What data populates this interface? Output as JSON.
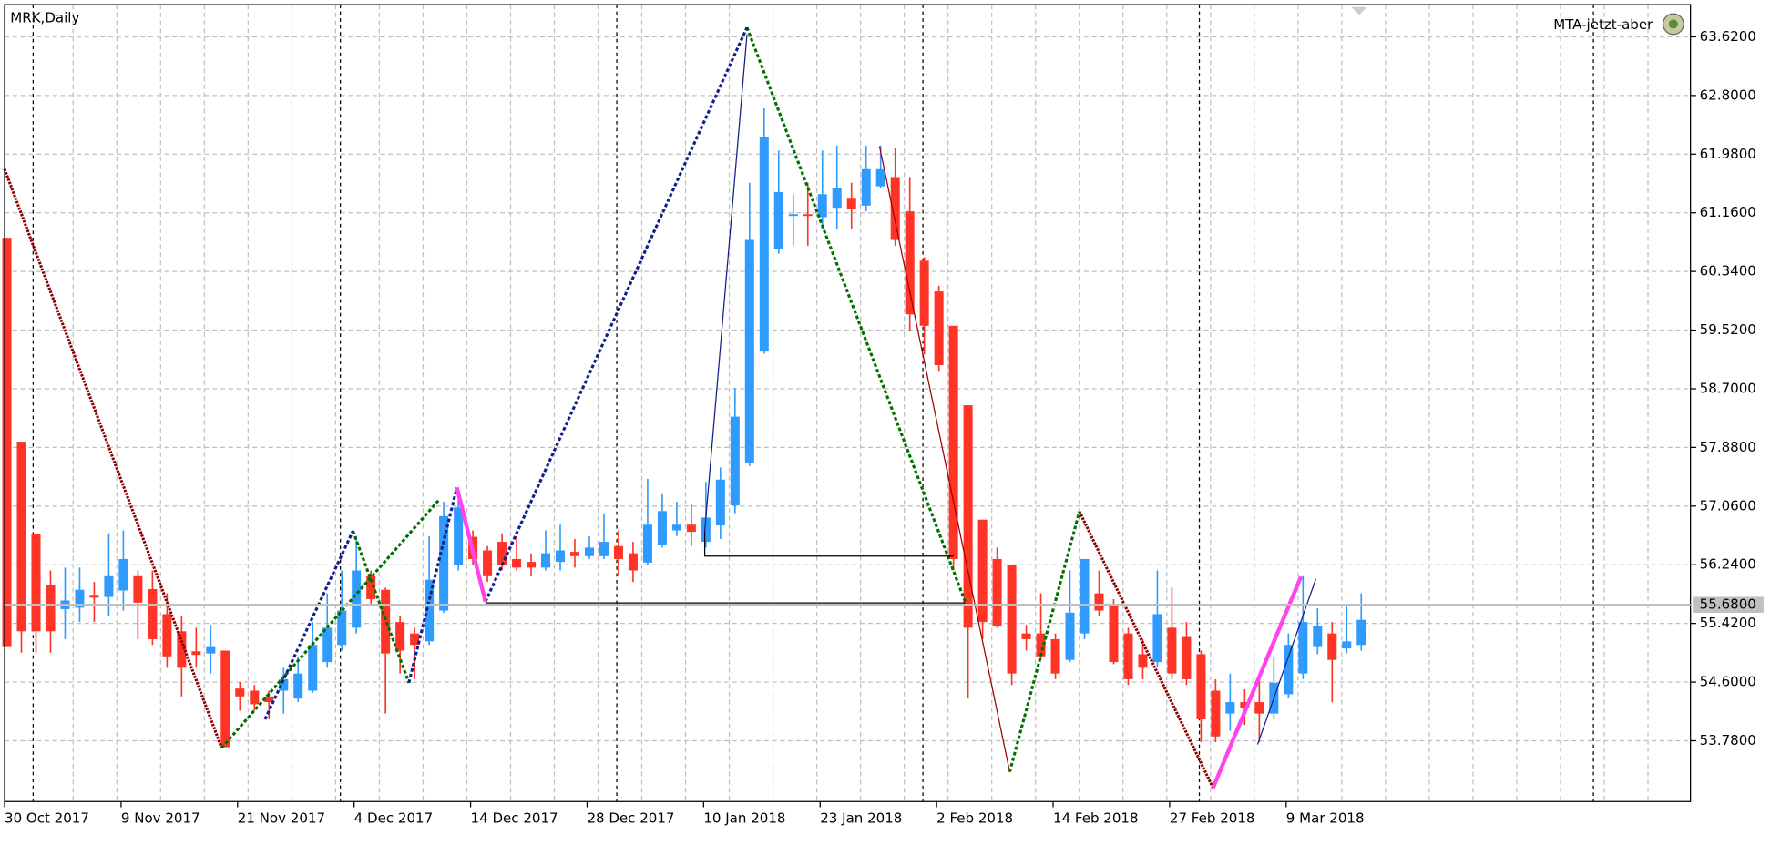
{
  "chart_data": {
    "type": "candlestick",
    "title": "MRK,Daily",
    "indicator_label": "MTA-jetzt-aber",
    "categories": [
      "30 Oct 2017",
      null,
      null,
      null,
      null,
      null,
      null,
      null,
      "9 Nov 2017",
      null,
      null,
      null,
      null,
      null,
      null,
      null,
      "21 Nov 2017",
      null,
      null,
      null,
      null,
      null,
      null,
      null,
      "4 Dec 2017",
      null,
      null,
      null,
      null,
      null,
      null,
      null,
      "14 Dec 2017",
      null,
      null,
      null,
      null,
      null,
      null,
      null,
      "28 Dec 2017",
      null,
      null,
      null,
      null,
      null,
      null,
      null,
      "10 Jan 2018",
      null,
      null,
      null,
      null,
      null,
      null,
      null,
      "23 Jan 2018",
      null,
      null,
      null,
      null,
      null,
      null,
      null,
      "2 Feb 2018",
      null,
      null,
      null,
      null,
      null,
      null,
      null,
      "14 Feb 2018",
      null,
      null,
      null,
      null,
      null,
      null,
      null,
      "27 Feb 2018",
      null,
      null,
      null,
      null,
      null,
      null,
      null,
      "9 Mar 2018",
      null,
      null,
      null,
      null,
      null
    ],
    "open": [
      60.81,
      57.96,
      56.67,
      55.96,
      55.62,
      55.64,
      55.82,
      55.79,
      55.88,
      56.08,
      55.9,
      55.55,
      55.31,
      55.03,
      55.0,
      55.04,
      54.51,
      54.48,
      54.4,
      54.48,
      54.37,
      54.48,
      54.88,
      55.12,
      55.36,
      56.08,
      55.89,
      55.44,
      55.28,
      55.17,
      55.6,
      56.24,
      56.63,
      56.44,
      56.56,
      56.32,
      56.28,
      56.2,
      56.28,
      56.42,
      56.36,
      56.36,
      56.5,
      56.4,
      56.27,
      56.52,
      56.72,
      56.8,
      56.56,
      56.79,
      57.07,
      57.67,
      59.22,
      60.65,
      61.12,
      61.14,
      61.1,
      61.23,
      61.37,
      61.26,
      61.53,
      61.66,
      61.18,
      60.49,
      60.06,
      59.58,
      58.47,
      56.87,
      56.32,
      56.24,
      55.28,
      55.28,
      55.2,
      54.91,
      55.28,
      55.84,
      55.68,
      55.28,
      54.99,
      54.88,
      55.36,
      55.23,
      54.99,
      54.48,
      54.16,
      54.32,
      54.32,
      54.16,
      54.43,
      54.72,
      55.09,
      55.28,
      55.07,
      55.12
    ],
    "high": [
      60.81,
      57.96,
      56.67,
      56.16,
      56.2,
      56.2,
      56.0,
      56.68,
      56.72,
      56.16,
      56.16,
      55.84,
      55.52,
      55.36,
      55.4,
      55.04,
      54.6,
      54.56,
      54.48,
      54.8,
      54.96,
      55.44,
      55.84,
      56.16,
      56.64,
      56.16,
      55.92,
      55.52,
      55.36,
      56.64,
      57.12,
      57.32,
      56.72,
      56.5,
      56.68,
      56.64,
      56.4,
      56.72,
      56.8,
      56.6,
      56.64,
      56.96,
      56.72,
      56.56,
      57.44,
      57.24,
      57.12,
      57.08,
      57.4,
      57.6,
      58.71,
      61.58,
      62.62,
      62.03,
      61.42,
      61.58,
      62.03,
      62.1,
      61.58,
      62.1,
      62.1,
      62.06,
      61.66,
      60.54,
      60.14,
      59.58,
      58.47,
      56.87,
      56.48,
      56.24,
      55.4,
      55.84,
      55.28,
      56.16,
      56.32,
      56.16,
      55.76,
      55.36,
      55.2,
      56.16,
      55.92,
      55.44,
      55.04,
      54.64,
      54.72,
      54.5,
      54.72,
      54.96,
      55.28,
      56.08,
      55.63,
      55.44,
      55.68,
      55.84
    ],
    "low": [
      55.09,
      55.01,
      55.01,
      55.01,
      55.2,
      55.44,
      55.44,
      55.52,
      55.6,
      55.2,
      55.12,
      54.8,
      54.4,
      54.8,
      54.72,
      53.69,
      54.2,
      54.2,
      54.08,
      54.16,
      54.32,
      54.45,
      54.8,
      55.04,
      55.28,
      55.68,
      54.16,
      54.72,
      54.64,
      55.12,
      55.57,
      56.16,
      56.24,
      56.0,
      56.16,
      56.16,
      56.08,
      56.16,
      56.16,
      56.2,
      56.32,
      56.32,
      56.08,
      56.0,
      56.24,
      56.48,
      56.64,
      56.5,
      56.48,
      56.6,
      56.96,
      57.62,
      59.19,
      60.59,
      60.7,
      60.7,
      60.94,
      60.94,
      60.94,
      61.18,
      61.5,
      60.7,
      59.5,
      59.18,
      58.95,
      56.16,
      54.37,
      55.2,
      55.36,
      54.56,
      55.04,
      54.91,
      54.64,
      54.88,
      55.2,
      55.52,
      54.85,
      54.56,
      54.64,
      54.8,
      54.64,
      54.56,
      53.76,
      53.76,
      53.92,
      54.0,
      53.76,
      54.08,
      54.37,
      54.64,
      54.99,
      54.32,
      55.0,
      55.04
    ],
    "close": [
      55.09,
      55.31,
      55.31,
      55.31,
      55.74,
      55.89,
      55.78,
      56.08,
      56.32,
      55.71,
      55.2,
      54.96,
      54.8,
      54.98,
      55.09,
      53.69,
      54.4,
      54.29,
      54.32,
      54.64,
      54.72,
      55.12,
      55.36,
      55.6,
      56.16,
      55.76,
      55.0,
      55.04,
      55.12,
      56.03,
      56.92,
      57.04,
      56.32,
      56.08,
      56.24,
      56.2,
      56.2,
      56.4,
      56.44,
      56.36,
      56.48,
      56.56,
      56.32,
      56.16,
      56.8,
      56.99,
      56.8,
      56.7,
      56.9,
      57.43,
      58.31,
      60.78,
      62.22,
      61.45,
      61.14,
      61.12,
      61.42,
      61.5,
      61.21,
      61.77,
      61.77,
      60.78,
      59.74,
      59.58,
      59.03,
      56.32,
      55.36,
      55.44,
      55.39,
      54.72,
      55.2,
      54.96,
      54.72,
      55.57,
      56.32,
      55.6,
      54.88,
      54.64,
      54.8,
      55.55,
      54.72,
      54.64,
      54.08,
      53.84,
      54.32,
      54.24,
      54.16,
      54.59,
      55.12,
      55.44,
      55.39,
      54.91,
      55.17,
      55.47
    ],
    "up_color": "#2f9bff",
    "down_color": "#ff3326",
    "ylim": [
      52.93,
      64.07
    ],
    "yticks": [
      {
        "value": 53.78,
        "label": "53.7800"
      },
      {
        "value": 54.6,
        "label": "54.6000"
      },
      {
        "value": 55.42,
        "label": "55.4200"
      },
      {
        "value": 56.24,
        "label": "56.2400"
      },
      {
        "value": 57.06,
        "label": "57.0600"
      },
      {
        "value": 57.88,
        "label": "57.8800"
      },
      {
        "value": 58.7,
        "label": "58.7000"
      },
      {
        "value": 59.52,
        "label": "59.5200"
      },
      {
        "value": 60.34,
        "label": "60.3400"
      },
      {
        "value": 61.16,
        "label": "61.1600"
      },
      {
        "value": 61.98,
        "label": "61.9800"
      },
      {
        "value": 62.8,
        "label": "62.8000"
      },
      {
        "value": 63.62,
        "label": "63.6200"
      }
    ],
    "current_price": {
      "value": 55.68,
      "label": "55.6800"
    },
    "grid": true
  }
}
